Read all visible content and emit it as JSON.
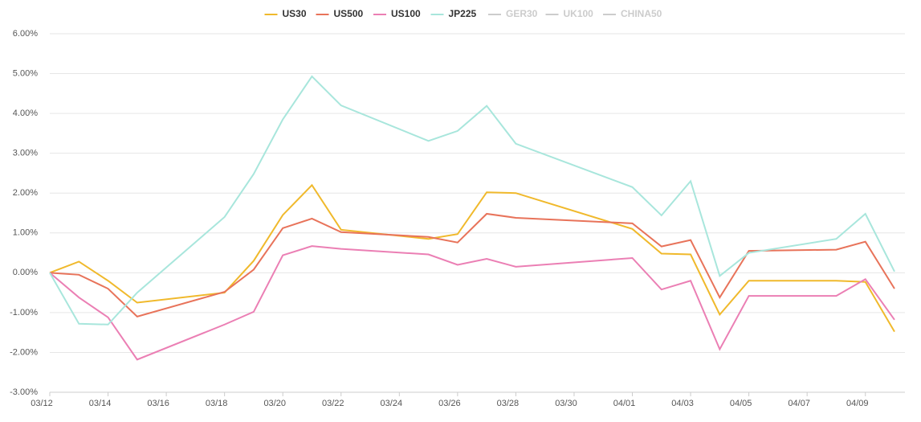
{
  "chart_data": {
    "type": "line",
    "x": [
      "03/12",
      "03/13",
      "03/14",
      "03/15",
      "03/18",
      "03/19",
      "03/20",
      "03/21",
      "03/22",
      "03/25",
      "03/26",
      "03/27",
      "03/28",
      "04/01",
      "04/02",
      "04/03",
      "04/04",
      "04/05",
      "04/08",
      "04/09",
      "04/10"
    ],
    "series": [
      {
        "name": "US30",
        "color": "#f0b92c",
        "values": [
          0,
          0.28,
          -0.2,
          -0.75,
          -0.5,
          0.3,
          1.45,
          2.2,
          1.08,
          0.85,
          0.97,
          2.02,
          2.0,
          1.1,
          0.48,
          0.46,
          -1.05,
          -0.2,
          -0.2,
          -0.23,
          -1.48
        ]
      },
      {
        "name": "US500",
        "color": "#e8735a",
        "values": [
          0,
          -0.05,
          -0.4,
          -1.1,
          -0.48,
          0.08,
          1.12,
          1.36,
          1.02,
          0.9,
          0.76,
          1.48,
          1.38,
          1.24,
          0.66,
          0.82,
          -0.62,
          0.55,
          0.58,
          0.78,
          -0.4
        ]
      },
      {
        "name": "US100",
        "color": "#eb7fb4",
        "values": [
          0,
          -0.62,
          -1.12,
          -2.18,
          -1.3,
          -0.98,
          0.44,
          0.67,
          0.6,
          0.46,
          0.2,
          0.35,
          0.15,
          0.37,
          -0.42,
          -0.2,
          -1.92,
          -0.58,
          -0.58,
          -0.16,
          -1.18
        ]
      },
      {
        "name": "JP225",
        "color": "#a8e6dc",
        "values": [
          0,
          -1.28,
          -1.3,
          -0.5,
          1.4,
          2.48,
          3.85,
          4.93,
          4.2,
          3.31,
          3.56,
          4.19,
          3.24,
          2.15,
          1.44,
          2.3,
          -0.08,
          0.5,
          0.85,
          1.48,
          0.03
        ]
      },
      {
        "name": "GER30",
        "color": "#cccccc",
        "hidden": true
      },
      {
        "name": "UK100",
        "color": "#cccccc",
        "hidden": true
      },
      {
        "name": "CHINA50",
        "color": "#cccccc",
        "hidden": true
      }
    ],
    "ylim": [
      -3,
      6
    ],
    "yticks": [
      {
        "value": -3,
        "label": "-3.00%"
      },
      {
        "value": -2,
        "label": "-2.00%"
      },
      {
        "value": -1,
        "label": "-1.00%"
      },
      {
        "value": 0,
        "label": "0.00%"
      },
      {
        "value": 1,
        "label": "1.00%"
      },
      {
        "value": 2,
        "label": "2.00%"
      },
      {
        "value": 3,
        "label": "3.00%"
      },
      {
        "value": 4,
        "label": "4.00%"
      },
      {
        "value": 5,
        "label": "5.00%"
      },
      {
        "value": 6,
        "label": "6.00%"
      }
    ],
    "xlim": [
      "03/12",
      "04/10"
    ],
    "xticks": [
      "03/12",
      "03/14",
      "03/16",
      "03/18",
      "03/20",
      "03/22",
      "03/24",
      "03/26",
      "03/28",
      "03/30",
      "04/01",
      "04/03",
      "04/05",
      "04/07",
      "04/09"
    ],
    "grid": true
  }
}
